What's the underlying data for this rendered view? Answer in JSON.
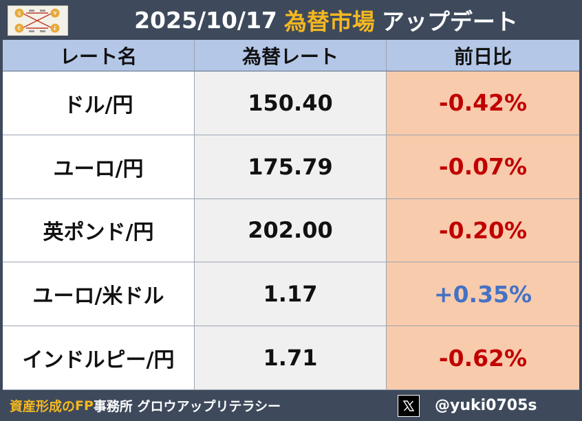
{
  "header": {
    "date": "2025/10/17",
    "highlight": "為替市場",
    "suffix": "アップデート",
    "logo_icon": "currency-exchange-diagram-icon"
  },
  "table": {
    "columns": [
      "レート名",
      "為替レート",
      "前日比"
    ],
    "rows": [
      {
        "name": "ドル/円",
        "rate": "150.40",
        "change": "-0.42%",
        "direction": "down"
      },
      {
        "name": "ユーロ/円",
        "rate": "175.79",
        "change": "-0.07%",
        "direction": "down"
      },
      {
        "name": "英ポンド/円",
        "rate": "202.00",
        "change": "-0.20%",
        "direction": "down"
      },
      {
        "name": "ユーロ/米ドル",
        "rate": "1.17",
        "change": "+0.35%",
        "direction": "up"
      },
      {
        "name": "インドルピー/円",
        "rate": "1.71",
        "change": "-0.62%",
        "direction": "down"
      }
    ]
  },
  "footer": {
    "org_part1": "資産形成の",
    "org_part2": "FP",
    "org_part3": "事務所 グロウアップリテラシー",
    "x_icon": "x-logo-icon",
    "handle": "@yuki0705s"
  },
  "colors": {
    "header_bg": "#3e4a5c",
    "accent_gold": "#f5b820",
    "col_header_bg": "#b4c7e7",
    "change_cell_bg": "#f8cbad",
    "negative": "#c00000",
    "positive": "#4472c4"
  }
}
